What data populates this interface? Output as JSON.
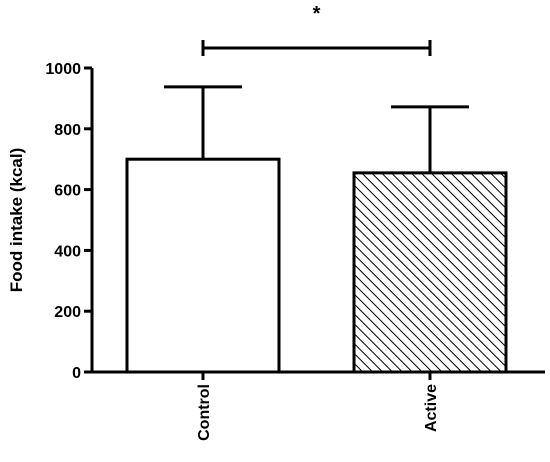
{
  "chart_data": {
    "type": "bar",
    "title": "",
    "xlabel": "",
    "ylabel": "Food intake (kcal)",
    "ylim": [
      0,
      1000
    ],
    "yticks": [
      0,
      200,
      400,
      600,
      800,
      1000
    ],
    "categories": [
      "Control",
      "Active"
    ],
    "values": [
      700,
      655
    ],
    "error_upper": [
      938,
      872
    ],
    "fills": [
      "solid-white",
      "diagonal-hatch"
    ],
    "significance": {
      "from": "Control",
      "to": "Active",
      "label": "*"
    },
    "grid": false,
    "legend": "none"
  }
}
